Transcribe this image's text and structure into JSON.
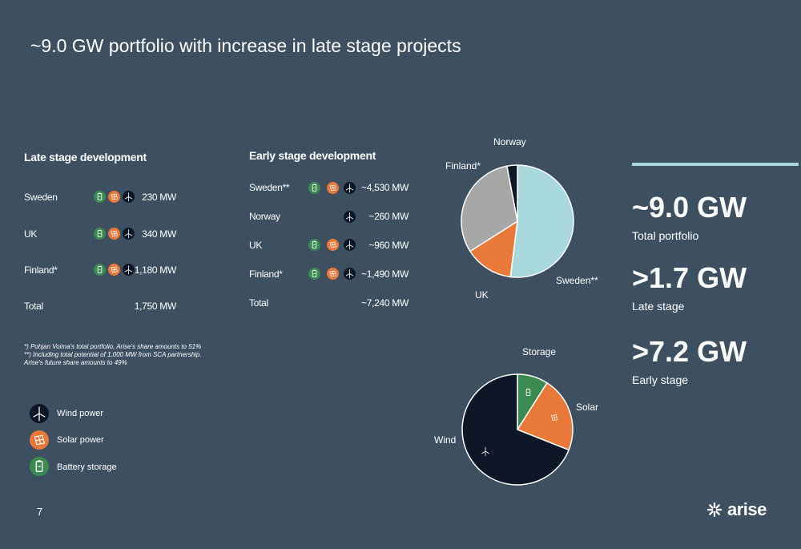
{
  "title": "~9.0 GW portfolio with increase in late stage projects",
  "late": {
    "heading": "Late stage development",
    "rows": [
      {
        "country": "Sweden",
        "mw": "230 MW",
        "icons": [
          "battery-icon",
          "solar-icon",
          "wind-icon"
        ]
      },
      {
        "country": "UK",
        "mw": "340 MW",
        "icons": [
          "battery-icon",
          "solar-icon",
          "wind-icon"
        ]
      },
      {
        "country": "Finland*",
        "mw": "1,180 MW",
        "icons": [
          "battery-icon",
          "solar-icon",
          "wind-icon"
        ]
      }
    ],
    "total_label": "Total",
    "total_value": "1,750 MW"
  },
  "early": {
    "heading": "Early stage development",
    "rows": [
      {
        "country": "Sweden**",
        "mw": "~4,530 MW",
        "icons": [
          "battery-icon",
          "solar-icon",
          "wind-icon"
        ]
      },
      {
        "country": "Norway",
        "mw": "~260 MW",
        "icons": [
          "wind-icon"
        ]
      },
      {
        "country": "UK",
        "mw": "~960 MW",
        "icons": [
          "battery-icon",
          "solar-icon",
          "wind-icon"
        ]
      },
      {
        "country": "Finland*",
        "mw": "~1,490 MW",
        "icons": [
          "battery-icon",
          "solar-icon",
          "wind-icon"
        ]
      }
    ],
    "total_label": "Total",
    "total_value": "~7,240 MW"
  },
  "footnotes": [
    "*) Pohjan Voima's total portfolio, Arise's share amounts to 51%",
    "**) Including total potential of 1,000 MW from SCA partnership.",
    "Arise's future share amounts to 49%"
  ],
  "legend": [
    {
      "label": "Wind power",
      "icon": "wind-icon"
    },
    {
      "label": "Solar power",
      "icon": "solar-icon"
    },
    {
      "label": "Battery storage",
      "icon": "battery-icon"
    }
  ],
  "kpis": [
    {
      "value": "~9.0 GW",
      "label": "Total portfolio"
    },
    {
      "value": ">1.7 GW",
      "label": "Late stage"
    },
    {
      "value": ">7.2 GW",
      "label": "Early stage"
    }
  ],
  "page_number": "7",
  "logo_text": "arise",
  "colors": {
    "background": "#3e5060",
    "wind": "#0d1726",
    "solar": "#e8793a",
    "battery": "#3a8a52",
    "sweden": "#a8d8dc",
    "finland": "#a6a6a6",
    "accent_line": "#a8d8dc"
  },
  "chart_data": [
    {
      "type": "pie",
      "slices": [
        {
          "label": "Sweden**",
          "value": 52,
          "color": "#a8d8dc"
        },
        {
          "label": "UK",
          "value": 14,
          "color": "#e8793a"
        },
        {
          "label": "Finland*",
          "value": 31,
          "color": "#a6a6a6"
        },
        {
          "label": "Norway",
          "value": 3,
          "color": "#0d1726"
        }
      ]
    },
    {
      "type": "pie",
      "slices": [
        {
          "label": "Storage",
          "value": 9,
          "color": "#3a8a52",
          "icon": "battery-icon"
        },
        {
          "label": "Solar",
          "value": 22,
          "color": "#e8793a",
          "icon": "solar-icon"
        },
        {
          "label": "Wind",
          "value": 69,
          "color": "#0d1726",
          "icon": "wind-icon"
        }
      ]
    }
  ]
}
